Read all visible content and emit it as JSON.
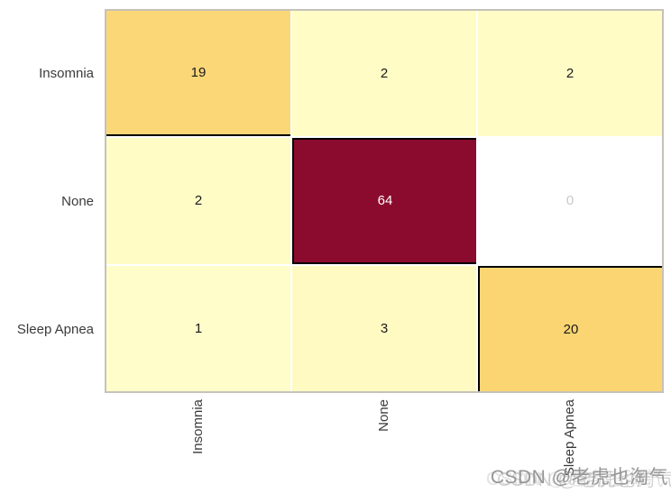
{
  "chart_data": {
    "type": "heatmap",
    "subtype": "confusion-matrix",
    "colormap": "YlOrRd",
    "x_categories": [
      "Insomnia",
      "None",
      "Sleep Apnea"
    ],
    "y_categories": [
      "Insomnia",
      "None",
      "Sleep Apnea"
    ],
    "matrix": [
      [
        19,
        2,
        2
      ],
      [
        2,
        64,
        0
      ],
      [
        1,
        3,
        20
      ]
    ],
    "value_range": [
      0,
      64
    ],
    "cell_colors": [
      [
        "#FBD778",
        "#FFFCC6",
        "#FFFCC6"
      ],
      [
        "#FFFCC6",
        "#8B0B2E",
        "#FFFFFF"
      ],
      [
        "#FFFDC9",
        "#FFFAC2",
        "#FAD572"
      ]
    ],
    "value_text_colors": [
      [
        "#1a1a1a",
        "#1a1a1a",
        "#1a1a1a"
      ],
      [
        "#1a1a1a",
        "#ffffff",
        "#c9c9c9"
      ],
      [
        "#1a1a1a",
        "#1a1a1a",
        "#1a1a1a"
      ]
    ],
    "diagonal_cell_borders": [
      [
        "bottom"
      ],
      [
        "top",
        "left",
        "bottom"
      ],
      [
        "top",
        "left"
      ]
    ],
    "diagonal_border_color": "#000000",
    "grid_line_color": "#ffffff",
    "plot_border_color": "#c6c2ba",
    "x_tick_rotation": 90,
    "legend": "none",
    "title": ""
  },
  "watermark": {
    "text": "CSDN @老虎也淘气"
  }
}
